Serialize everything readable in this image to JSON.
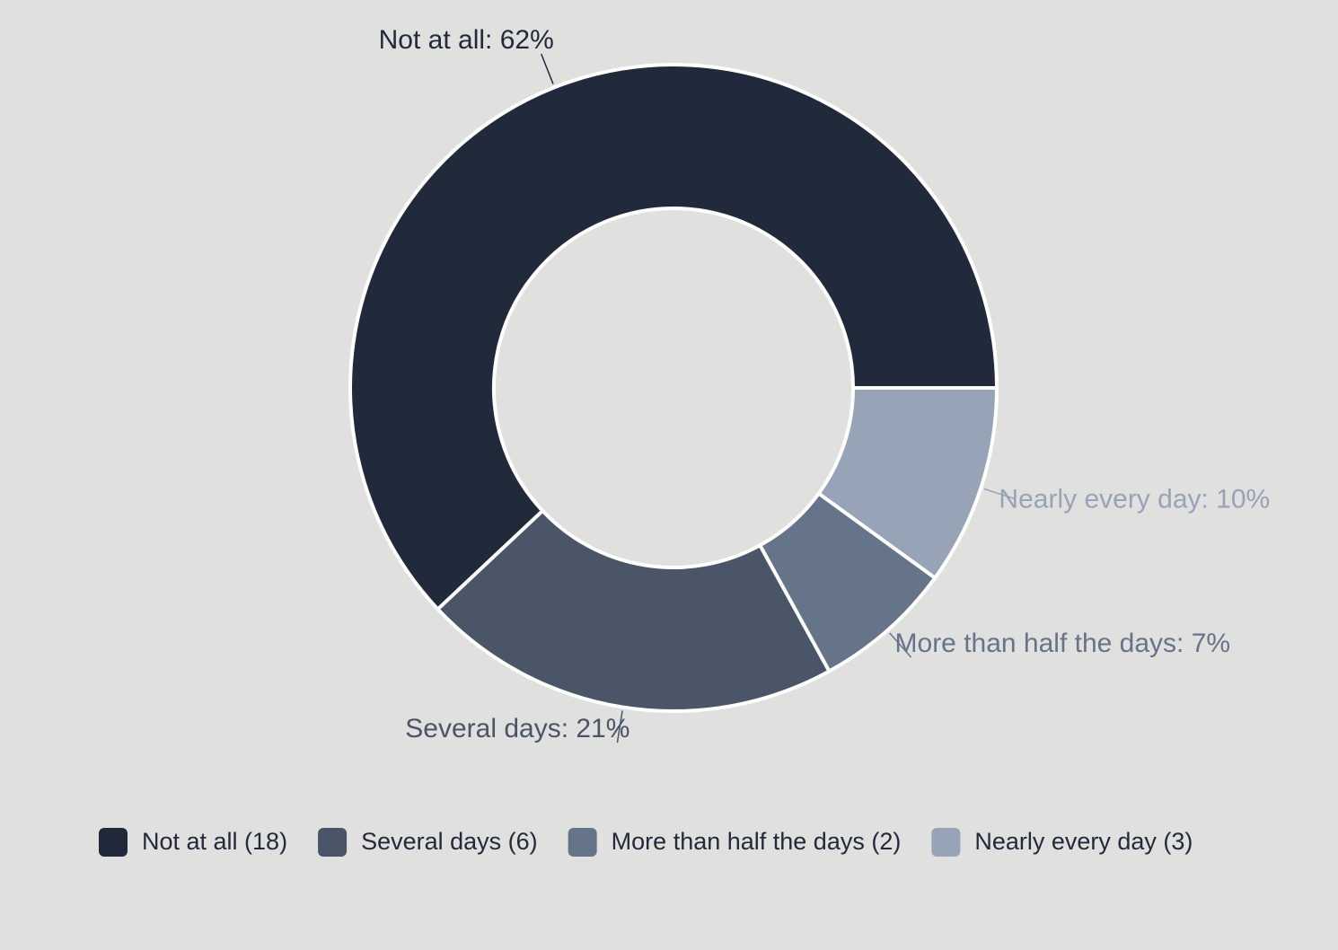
{
  "chart_data": {
    "type": "donut",
    "labels": [
      "Not at all: 62%",
      "Several days: 21%",
      "More than half the days: 7%",
      "Nearly every day: 10%"
    ],
    "legend": [
      "Not at all (18)",
      "Several days (6)",
      "More than half the days (2)",
      "Nearly every day (3)"
    ],
    "values": [
      62,
      21,
      7,
      10
    ],
    "counts": [
      18,
      6,
      2,
      3
    ],
    "colors": [
      "#212a3b",
      "#4a5568",
      "#667489",
      "#97a3b6"
    ]
  }
}
